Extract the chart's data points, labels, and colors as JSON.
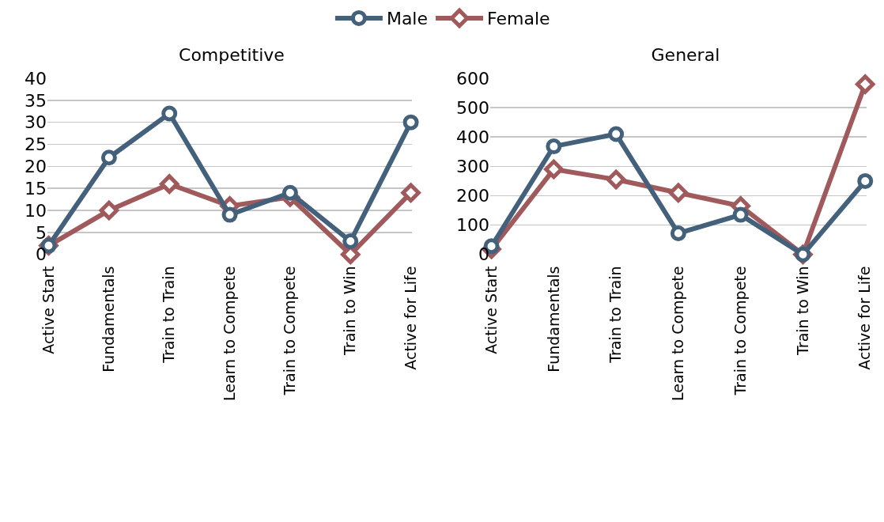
{
  "chart_data": [
    {
      "type": "line",
      "title": "Competitive",
      "categories": [
        "Active Start",
        "Fundamentals",
        "Train to Train",
        "Learn to Compete",
        "Train to Compete",
        "Train to Win",
        "Active for Life"
      ],
      "ylim": [
        0,
        40
      ],
      "yticks": [
        0,
        5,
        10,
        15,
        20,
        25,
        30,
        35,
        40
      ],
      "grid": "y",
      "legend": "top",
      "line_style": "solid",
      "series": [
        {
          "name": "Male",
          "color": "#44617b",
          "marker": "circle",
          "values": [
            2,
            22,
            32,
            9,
            14,
            3,
            30
          ]
        },
        {
          "name": "Female",
          "color": "#a05a5c",
          "marker": "diamond",
          "values": [
            2,
            10,
            16,
            11,
            13,
            0,
            14
          ]
        }
      ]
    },
    {
      "type": "line",
      "title": "General",
      "categories": [
        "Active Start",
        "Fundamentals",
        "Train to Train",
        "Learn to Compete",
        "Train to Compete",
        "Train to Win",
        "Active for Life"
      ],
      "ylim": [
        0,
        600
      ],
      "yticks": [
        0,
        100,
        200,
        300,
        400,
        500,
        600
      ],
      "grid": "y",
      "line_style": "solid",
      "series": [
        {
          "color": "#44617b",
          "marker": "circle",
          "values": [
            28,
            368,
            410,
            72,
            135,
            0,
            250
          ]
        },
        {
          "color": "#a05a5c",
          "marker": "diamond",
          "values": [
            18,
            290,
            255,
            210,
            165,
            0,
            580
          ]
        }
      ]
    }
  ]
}
